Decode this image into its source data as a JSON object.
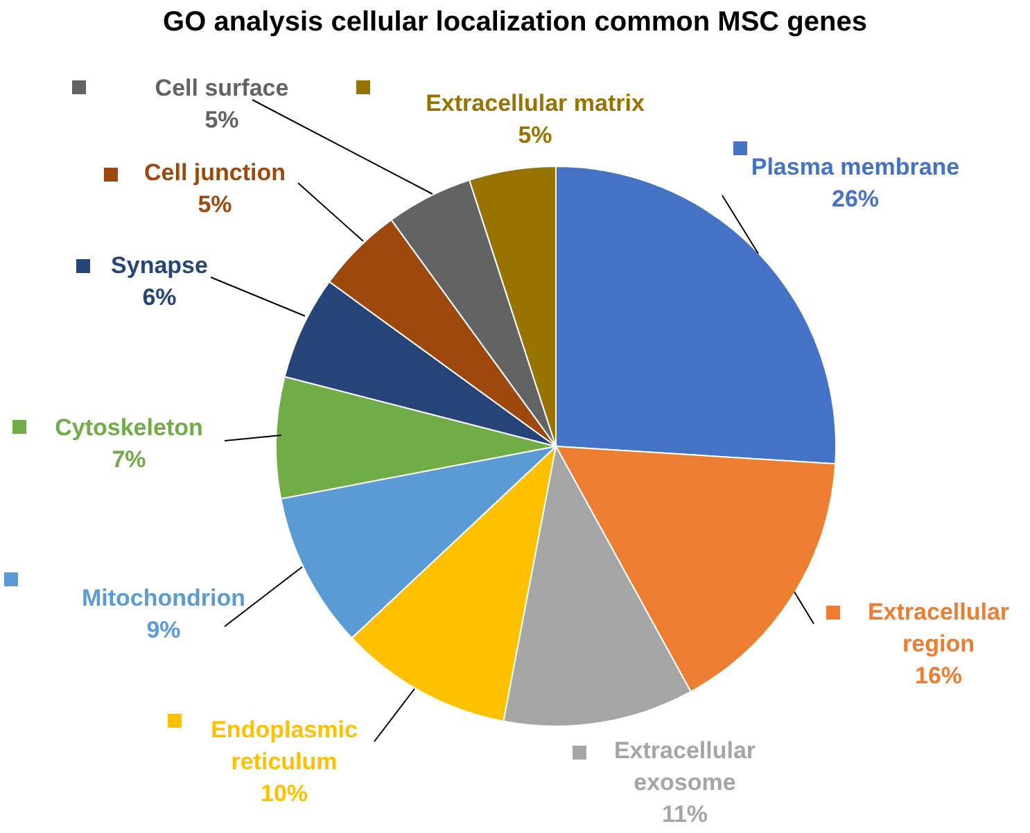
{
  "chart_data": {
    "type": "pie",
    "title": "GO analysis cellular localization common MSC genes",
    "categories": [
      "Plasma membrane",
      "Extracellular region",
      "Extracellular exosome",
      "Endoplasmic reticulum",
      "Mitochondrion",
      "Cytoskeleton",
      "Synapse",
      "Cell junction",
      "Cell surface",
      "Extracellular matrix"
    ],
    "values": [
      26,
      16,
      11,
      10,
      9,
      7,
      6,
      5,
      5,
      5
    ],
    "value_labels": [
      "26%",
      "16%",
      "11%",
      "10%",
      "9%",
      "7%",
      "6%",
      "5%",
      "5%",
      "5%"
    ],
    "colors": [
      "#4472c4",
      "#ed7d31",
      "#a5a5a5",
      "#ffc000",
      "#5b9bd5",
      "#70ad47",
      "#264478",
      "#9e480e",
      "#636363",
      "#997300"
    ],
    "legend": "left"
  }
}
